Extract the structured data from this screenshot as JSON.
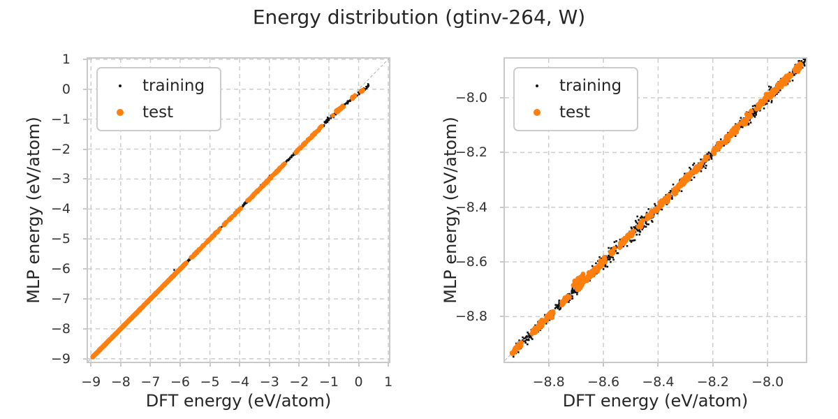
{
  "figure_title": "Energy distribution (gtinv-264, W)",
  "colors": {
    "training": "#111111",
    "test": "#ff7f0e",
    "grid": "#cdcdcd",
    "spine": "#c9c9c9",
    "identity_line": "#b0b0b0",
    "text": "#262626",
    "tick_text": "#333333",
    "background": "#ffffff"
  },
  "legend": {
    "position": "upper left",
    "entries": [
      "training",
      "test"
    ]
  },
  "chart_data": [
    {
      "type": "scatter",
      "title": "",
      "xlabel": "DFT energy (eV/atom)",
      "ylabel": "MLP energy (eV/atom)",
      "xlim": [
        -9.1,
        1.02
      ],
      "ylim": [
        -9.1,
        1.02
      ],
      "grid": true,
      "legend_position": "upper left",
      "identity_line": {
        "show": true,
        "color": "#b0b0b0",
        "style": "dashed"
      },
      "grid_color": "#cdcdcd",
      "seed": 20240,
      "xticks": {
        "values": [
          -9,
          -8,
          -7,
          -6,
          -5,
          -4,
          -3,
          -2,
          -1,
          0,
          1
        ],
        "labels": [
          "−9",
          "−8",
          "−7",
          "−6",
          "−5",
          "−4",
          "−3",
          "−2",
          "−1",
          "0",
          "1"
        ]
      },
      "yticks": {
        "values": [
          -9,
          -8,
          -7,
          -6,
          -5,
          -4,
          -3,
          -2,
          -1,
          0,
          1
        ],
        "labels": [
          "−9",
          "−8",
          "−7",
          "−6",
          "−5",
          "−4",
          "−3",
          "−2",
          "−1",
          "0",
          "1"
        ]
      },
      "data_range": {
        "x_min": -8.95,
        "x_max": 0.35
      },
      "dip": {
        "start": -1.0,
        "factor": 0.14,
        "power": 1.6
      },
      "series": [
        {
          "name": "training",
          "color": "#111111",
          "marker": "square",
          "size": 2.4,
          "segments": [
            {
              "x_range": [
                -8.95,
                -5.6
              ],
              "count": 700,
              "noise": 0.012
            },
            {
              "x_range": [
                -5.6,
                -2.0
              ],
              "count": 350,
              "noise": 0.022
            },
            {
              "x_range": [
                -2.0,
                -0.9
              ],
              "count": 120,
              "noise": 0.025
            },
            {
              "x_range": [
                -0.9,
                0.35
              ],
              "count": 110,
              "noise": 0.03
            },
            {
              "x_range": [
                -6.3,
                -0.6
              ],
              "count": 14,
              "noise": 0.1
            }
          ]
        },
        {
          "name": "test",
          "color": "#ff7f0e",
          "marker": "circle",
          "size": 6.5,
          "segments": [
            {
              "x_range": [
                -8.95,
                -5.8
              ],
              "count": 900,
              "noise": 0.008
            },
            {
              "x_range": [
                -5.8,
                -2.2
              ],
              "count": 260,
              "noise": 0.012,
              "clustered": true
            },
            {
              "x_range": [
                -2.2,
                -0.9
              ],
              "count": 70,
              "noise": 0.015,
              "clustered": true
            },
            {
              "x_range": [
                -0.9,
                0.33
              ],
              "count": 45,
              "noise": 0.02,
              "clustered": true
            }
          ]
        }
      ]
    },
    {
      "type": "scatter",
      "title": "",
      "xlabel": "DFT energy (eV/atom)",
      "ylabel": "MLP energy (eV/atom)",
      "xlim": [
        -8.96,
        -7.86
      ],
      "ylim": [
        -8.965,
        -7.857
      ],
      "grid": true,
      "legend_position": "upper left",
      "identity_line": {
        "show": true,
        "color": "#b0b0b0",
        "style": "dashed"
      },
      "grid_color": "#cdcdcd",
      "seed": 777,
      "xticks": {
        "values": [
          -8.8,
          -8.6,
          -8.4,
          -8.2,
          -8.0
        ],
        "labels": [
          "−8.8",
          "−8.6",
          "−8.4",
          "−8.2",
          "−8.0"
        ]
      },
      "yticks": {
        "values": [
          -8.0,
          -8.2,
          -8.4,
          -8.6,
          -8.8
        ],
        "labels": [
          "−8.0",
          "−8.2",
          "−8.4",
          "−8.6",
          "−8.8"
        ]
      },
      "data_range": {
        "x_min": -8.935,
        "x_max": -7.86
      },
      "series": [
        {
          "name": "training",
          "color": "#111111",
          "marker": "square",
          "size": 2.6,
          "segments": [
            {
              "x_range": [
                -8.93,
                -7.86
              ],
              "count": 900,
              "noise": 0.01
            },
            {
              "x_range": [
                -8.62,
                -8.55,
                ""
              ],
              "count": 50,
              "noise": 0.016
            },
            {
              "x_range": [
                -8.5,
                -8.42
              ],
              "count": 60,
              "noise": 0.018
            },
            {
              "x_range": [
                -8.1,
                -7.95
              ],
              "count": 70,
              "noise": 0.014
            }
          ]
        },
        {
          "name": "test",
          "color": "#ff7f0e",
          "marker": "circle",
          "size": 7,
          "segments": [
            {
              "x_range": [
                -8.935,
                -8.9
              ],
              "count": 60,
              "noise": 0.004
            },
            {
              "x_range": [
                -8.86,
                -8.6
              ],
              "count": 220,
              "noise": 0.005,
              "clustered": true
            },
            {
              "x_range": [
                -8.73,
                -8.66
              ],
              "count": 50,
              "noise": 0.006,
              "offset": 0.022,
              "clustered": true
            },
            {
              "x_range": [
                -8.6,
                -8.2
              ],
              "count": 260,
              "noise": 0.005,
              "clustered": true
            },
            {
              "x_range": [
                -8.2,
                -7.87
              ],
              "count": 260,
              "noise": 0.006,
              "clustered": true
            }
          ]
        }
      ]
    }
  ]
}
